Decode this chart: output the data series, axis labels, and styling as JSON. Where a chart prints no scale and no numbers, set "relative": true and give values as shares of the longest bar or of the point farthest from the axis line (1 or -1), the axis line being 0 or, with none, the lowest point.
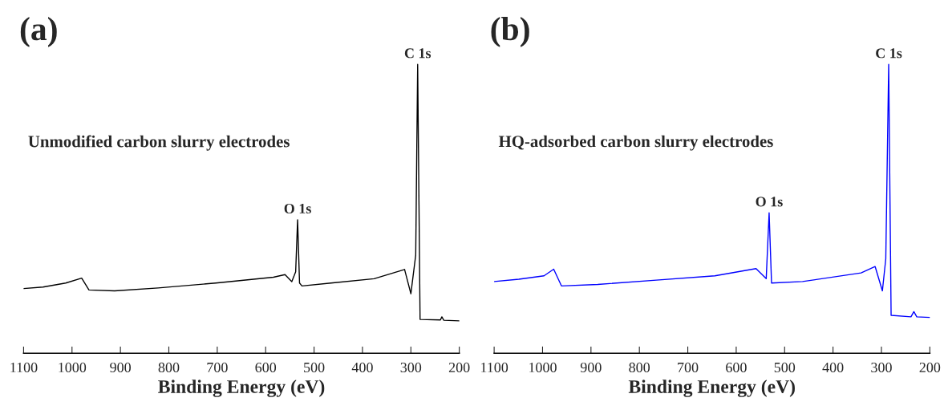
{
  "chart_data": [
    {
      "type": "line",
      "title": "(a)",
      "xlabel": "Binding Energy (eV)",
      "relative": true,
      "tick_labels": "x",
      "grid": false,
      "legend": false,
      "xlim": [
        1100,
        200
      ],
      "xticks": [
        1100,
        1000,
        900,
        800,
        700,
        600,
        500,
        400,
        300,
        200
      ],
      "annotations": [
        "Unmodified carbon slurry electrodes",
        {
          "text": "O 1s",
          "x": 534,
          "y": 0.462
        },
        {
          "text": "C 1s",
          "x": 286,
          "y": 1.0
        }
      ],
      "series": [
        {
          "color": "#000000",
          "x": [
            1100,
            1060,
            1013,
            980,
            965,
            912,
            822,
            703,
            584,
            560,
            546,
            538,
            534,
            530,
            525,
            465,
            376,
            313,
            300,
            290,
            286,
            281,
            239,
            236,
            232,
            200
          ],
          "values": [
            0.224,
            0.229,
            0.243,
            0.26,
            0.219,
            0.216,
            0.226,
            0.243,
            0.263,
            0.272,
            0.248,
            0.282,
            0.462,
            0.243,
            0.233,
            0.243,
            0.258,
            0.29,
            0.206,
            0.34,
            1.0,
            0.117,
            0.115,
            0.126,
            0.114,
            0.112
          ]
        }
      ]
    },
    {
      "type": "line",
      "title": "(b)",
      "xlabel": "Binding Energy (eV)",
      "relative": true,
      "tick_labels": "x",
      "grid": false,
      "legend": false,
      "xlim": [
        1100,
        200
      ],
      "xticks": [
        1100,
        1000,
        900,
        800,
        700,
        600,
        500,
        400,
        300,
        200
      ],
      "annotations": [
        "HQ-adsorbed carbon slurry electrodes",
        {
          "text": "O 1s",
          "x": 532,
          "y": 0.486
        },
        {
          "text": "C 1s",
          "x": 285,
          "y": 1.0
        }
      ],
      "series": [
        {
          "color": "#0000ff",
          "x": [
            1100,
            1049,
            997,
            977,
            961,
            886,
            765,
            644,
            559,
            538,
            532,
            527,
            463,
            342,
            313,
            298,
            291,
            285,
            280,
            239,
            233,
            227,
            200
          ],
          "values": [
            0.248,
            0.256,
            0.268,
            0.291,
            0.233,
            0.238,
            0.253,
            0.268,
            0.293,
            0.258,
            0.486,
            0.243,
            0.248,
            0.278,
            0.3,
            0.216,
            0.327,
            1.0,
            0.131,
            0.126,
            0.144,
            0.126,
            0.124
          ]
        }
      ]
    }
  ]
}
